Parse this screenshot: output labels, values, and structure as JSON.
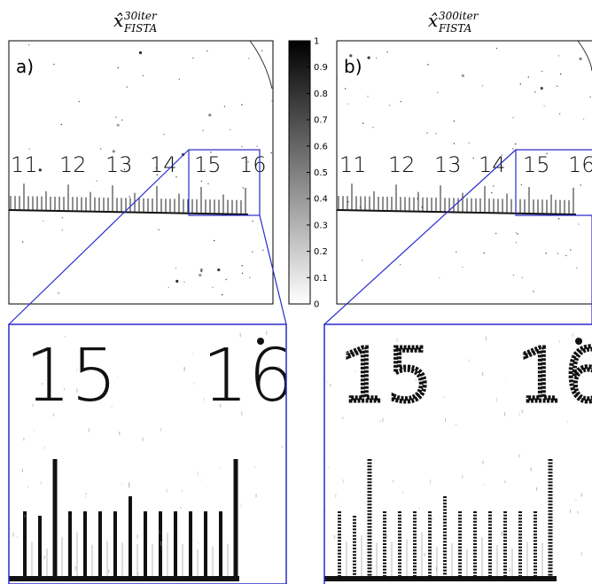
{
  "panels": [
    {
      "label": "a)",
      "title_base": "x̂",
      "title_sup": "30iter",
      "title_sub": "FISTA"
    },
    {
      "label": "b)",
      "title_base": "x̂",
      "title_sup": "300iter",
      "title_sub": "FISTA"
    }
  ],
  "ruler_numbers": [
    "11",
    "12",
    "13",
    "14",
    "15",
    "16"
  ],
  "zoom_numbers": [
    "15",
    "16"
  ],
  "colorbar": {
    "ticks": [
      "1",
      "0.9",
      "0.8",
      "0.7",
      "0.6",
      "0.5",
      "0.4",
      "0.3",
      "0.2",
      "0.1",
      "0"
    ]
  },
  "colors": {
    "zoom_frame": "#2a2acc",
    "ink": "#111111"
  }
}
